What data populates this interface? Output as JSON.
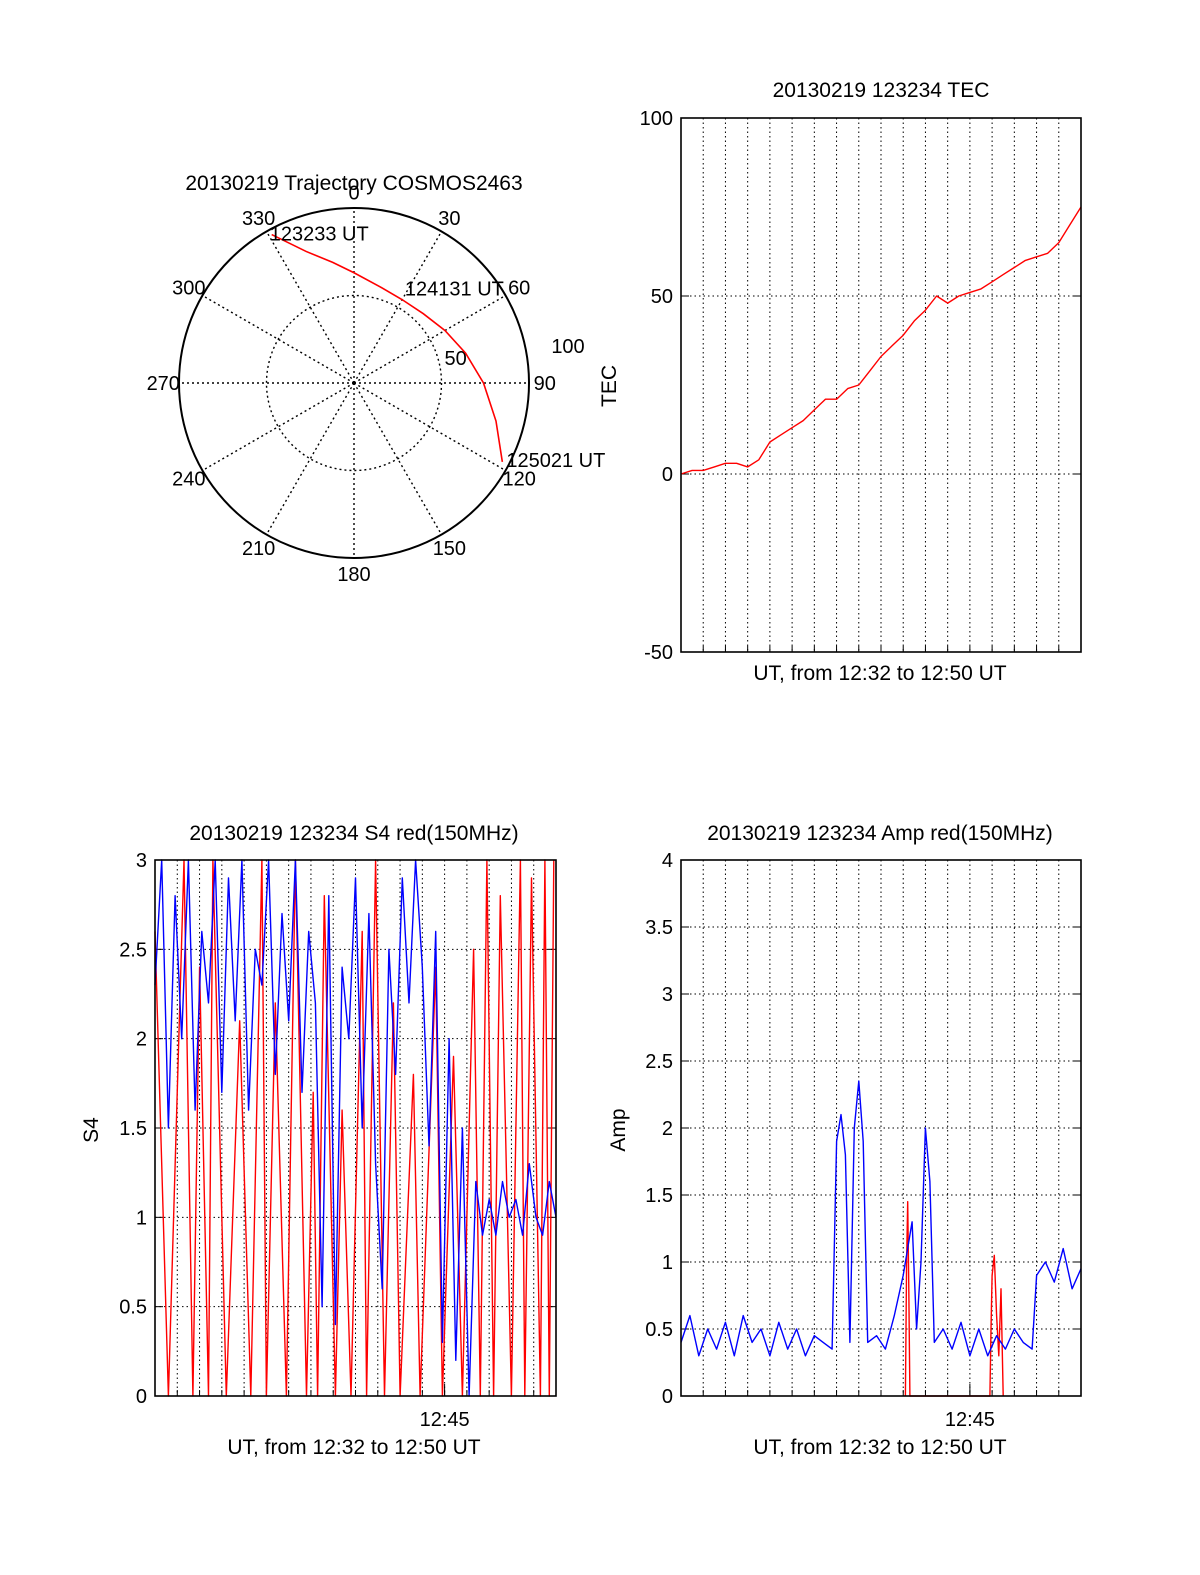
{
  "colors": {
    "red": "#ff0000",
    "blue": "#0000ff",
    "axis": "#000000",
    "grid": "#000000",
    "background": "#ffffff"
  },
  "chart_data": [
    {
      "id": "trajectory",
      "type": "polar",
      "title": "20130219 Trajectory COSMOS2463",
      "azimuth_labels": [
        "0",
        "30",
        "60",
        "90",
        "120",
        "150",
        "180",
        "210",
        "240",
        "270",
        "300",
        "330"
      ],
      "radial_labels": [
        "50",
        "100"
      ],
      "rlim": [
        0,
        100
      ],
      "grid": true,
      "direction": "clockwise",
      "zero_position": "top",
      "series": [
        {
          "color": "red",
          "points": [
            {
              "az": 331,
              "r": 97
            },
            {
              "az": 340,
              "r": 80
            },
            {
              "az": 350,
              "r": 70
            },
            {
              "az": 0,
              "r": 63
            },
            {
              "az": 15,
              "r": 57
            },
            {
              "az": 30,
              "r": 55
            },
            {
              "az": 45,
              "r": 56
            },
            {
              "az": 60,
              "r": 60
            },
            {
              "az": 75,
              "r": 66
            },
            {
              "az": 90,
              "r": 74
            },
            {
              "az": 105,
              "r": 84
            },
            {
              "az": 118,
              "r": 96
            }
          ]
        }
      ],
      "annotations": [
        {
          "text": "123233 UT",
          "az": 331,
          "r": 97
        },
        {
          "text": "124131 UT",
          "az": 60,
          "r": 60
        },
        {
          "text": "125021 UT",
          "az": 118,
          "r": 96
        }
      ]
    },
    {
      "id": "tec",
      "type": "line",
      "title": "20130219 123234 TEC",
      "xlabel": "UT, from 12:32 to 12:50 UT",
      "ylabel": "TEC",
      "x_range_minutes": [
        0,
        18
      ],
      "ylim": [
        -50,
        100
      ],
      "yticks": [
        "-50",
        "0",
        "50",
        "100"
      ],
      "grid": true,
      "series": [
        {
          "color": "red",
          "x": [
            0,
            0.5,
            1,
            1.5,
            2,
            2.5,
            3,
            3.5,
            4,
            4.5,
            5,
            5.5,
            6,
            6.5,
            7,
            7.5,
            8,
            8.5,
            9,
            9.5,
            10,
            10.5,
            11,
            11.5,
            12,
            12.5,
            13,
            13.5,
            14,
            14.5,
            15,
            15.5,
            16,
            16.5,
            17,
            17.5,
            18
          ],
          "y": [
            0,
            1,
            1,
            2,
            3,
            3,
            2,
            4,
            9,
            11,
            13,
            15,
            18,
            21,
            21,
            24,
            25,
            29,
            33,
            36,
            39,
            43,
            46,
            50,
            48,
            50,
            51,
            52,
            54,
            56,
            58,
            60,
            61,
            62,
            65,
            70,
            75
          ]
        }
      ]
    },
    {
      "id": "s4",
      "type": "line",
      "title": "20130219 123234 S4 red(150MHz)",
      "xlabel": "UT, from 12:32 to 12:50 UT",
      "ylabel": "S4",
      "x_range_minutes": [
        0,
        18
      ],
      "xticks": [
        {
          "minute": 13,
          "label": "12:45"
        }
      ],
      "ylim": [
        0,
        3
      ],
      "yticks": [
        "0",
        "0.5",
        "1",
        "1.5",
        "2",
        "2.5",
        "3"
      ],
      "grid": true,
      "series": [
        {
          "color": "red",
          "x": [
            0,
            0.6,
            1.3,
            1.7,
            2.0,
            2.4,
            2.6,
            3.2,
            3.8,
            4.3,
            4.8,
            5.0,
            5.4,
            5.9,
            6.3,
            6.8,
            7.1,
            7.3,
            7.6,
            8.1,
            8.4,
            8.8,
            9.3,
            9.5,
            9.9,
            10.3,
            10.7,
            11.0,
            11.6,
            11.9,
            12.6,
            12.9,
            13.4,
            13.8,
            14.3,
            14.6,
            14.9,
            15.2,
            15.5,
            16.0,
            16.4,
            16.6,
            16.9,
            17.3,
            17.5,
            17.7,
            17.9
          ],
          "y": [
            2.6,
            0,
            3.0,
            0,
            2.4,
            0,
            3.0,
            0,
            2.1,
            0,
            3.0,
            0,
            2.2,
            0,
            3.0,
            0,
            1.7,
            0,
            2.8,
            0,
            1.6,
            0,
            2.6,
            0,
            3.0,
            0,
            2.2,
            0,
            1.8,
            0,
            2.4,
            0,
            1.9,
            0,
            2.5,
            0,
            3.0,
            0,
            2.8,
            0,
            3.0,
            0,
            2.9,
            0,
            3.0,
            0,
            3.0
          ]
        },
        {
          "color": "blue",
          "x": [
            0,
            0.3,
            0.6,
            0.9,
            1.2,
            1.5,
            1.8,
            2.1,
            2.4,
            2.7,
            3.0,
            3.3,
            3.6,
            3.9,
            4.2,
            4.5,
            4.8,
            5.1,
            5.4,
            5.7,
            6.0,
            6.3,
            6.6,
            6.9,
            7.2,
            7.5,
            7.8,
            8.1,
            8.4,
            8.7,
            9.0,
            9.3,
            9.6,
            9.9,
            10.2,
            10.5,
            10.8,
            11.1,
            11.4,
            11.7,
            12.0,
            12.3,
            12.6,
            12.9,
            13.2,
            13.5,
            13.8,
            14.1,
            14.4,
            14.7,
            15.0,
            15.3,
            15.6,
            15.9,
            16.2,
            16.5,
            16.8,
            17.1,
            17.4,
            17.7,
            18.0
          ],
          "y": [
            2.3,
            3.0,
            1.5,
            2.8,
            2.0,
            3.0,
            1.6,
            2.6,
            2.2,
            3.0,
            1.7,
            2.9,
            2.1,
            3.0,
            1.6,
            2.5,
            2.3,
            3.0,
            1.8,
            2.7,
            2.1,
            3.0,
            1.7,
            2.6,
            2.2,
            0.5,
            2.8,
            0.4,
            2.4,
            2.0,
            2.9,
            1.5,
            2.7,
            1.3,
            0.6,
            2.5,
            1.8,
            2.9,
            2.2,
            3.0,
            2.4,
            1.4,
            2.6,
            0.3,
            2.0,
            0.2,
            1.5,
            0.0,
            1.2,
            0.9,
            1.1,
            0.9,
            1.2,
            1.0,
            1.1,
            0.9,
            1.3,
            1.0,
            0.9,
            1.2,
            1.0
          ]
        }
      ]
    },
    {
      "id": "amp",
      "type": "line",
      "title": "20130219 123234 Amp red(150MHz)",
      "xlabel": "UT, from 12:32 to 12:50 UT",
      "ylabel": "Amp",
      "x_range_minutes": [
        0,
        18
      ],
      "xticks": [
        {
          "minute": 13,
          "label": "12:45"
        }
      ],
      "ylim": [
        0,
        4
      ],
      "yticks": [
        "0",
        "0.5",
        "1",
        "1.5",
        "2",
        "2.5",
        "3",
        "3.5",
        "4"
      ],
      "grid": true,
      "series": [
        {
          "color": "red",
          "x": [
            10.1,
            10.15,
            10.2,
            10.25,
            10.3,
            13.9,
            13.95,
            14.0,
            14.1,
            14.2,
            14.3,
            14.4,
            14.5
          ],
          "y": [
            0.0,
            1.0,
            1.45,
            0.8,
            0.0,
            0.0,
            0.5,
            0.9,
            1.05,
            0.6,
            0.3,
            0.8,
            0.0
          ]
        },
        {
          "color": "blue",
          "x": [
            0,
            0.4,
            0.8,
            1.2,
            1.6,
            2.0,
            2.4,
            2.8,
            3.2,
            3.6,
            4.0,
            4.4,
            4.8,
            5.2,
            5.6,
            6.0,
            6.4,
            6.8,
            7.0,
            7.2,
            7.4,
            7.6,
            7.8,
            8.0,
            8.2,
            8.4,
            8.8,
            9.2,
            9.6,
            10.0,
            10.4,
            10.6,
            10.8,
            11.0,
            11.2,
            11.4,
            11.8,
            12.2,
            12.6,
            13.0,
            13.4,
            13.8,
            14.2,
            14.6,
            15.0,
            15.4,
            15.8,
            16.0,
            16.4,
            16.8,
            17.2,
            17.6,
            18.0
          ],
          "y": [
            0.4,
            0.6,
            0.3,
            0.5,
            0.35,
            0.55,
            0.3,
            0.6,
            0.4,
            0.5,
            0.3,
            0.55,
            0.35,
            0.5,
            0.3,
            0.45,
            0.4,
            0.35,
            1.9,
            2.1,
            1.8,
            0.4,
            2.0,
            2.35,
            1.9,
            0.4,
            0.45,
            0.35,
            0.6,
            0.9,
            1.3,
            0.5,
            1.0,
            2.0,
            1.6,
            0.4,
            0.5,
            0.35,
            0.55,
            0.3,
            0.5,
            0.3,
            0.45,
            0.35,
            0.5,
            0.4,
            0.35,
            0.9,
            1.0,
            0.85,
            1.1,
            0.8,
            0.95
          ]
        }
      ]
    }
  ]
}
